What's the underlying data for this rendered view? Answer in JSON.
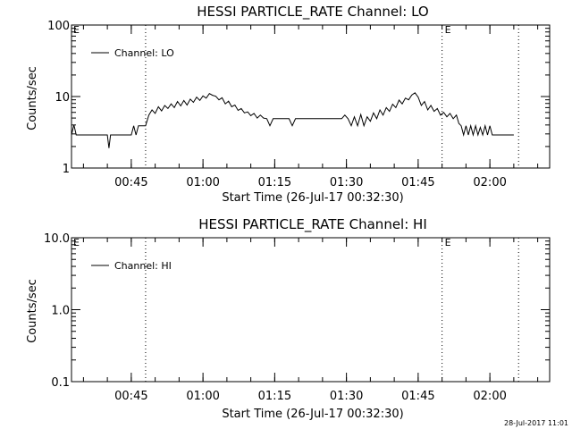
{
  "chart_data": [
    {
      "type": "line",
      "title": "HESSI PARTICLE_RATE Channel: LO",
      "xlabel": "Start Time (26-Jul-17 00:32:30)",
      "ylabel": "Counts/sec",
      "yscale": "log",
      "ylim": [
        1,
        100
      ],
      "yticks": [
        1,
        10,
        100
      ],
      "ytick_labels": [
        "1",
        "10",
        "100"
      ],
      "xlim": [
        "00:32:30",
        "02:12:30"
      ],
      "xticks": [
        "00:45",
        "01:00",
        "01:15",
        "01:30",
        "01:45",
        "02:00"
      ],
      "grid": false,
      "legend_position": "top-left",
      "event_markers": [
        {
          "time": "00:48",
          "label": ""
        },
        {
          "time": "01:50",
          "label": "E"
        },
        {
          "time": "02:06",
          "label": ""
        }
      ],
      "corner_label": "E",
      "series": [
        {
          "name": "Channel: LO",
          "x": [
            "00:32:30",
            "00:33:00",
            "00:33:30",
            "00:34:00",
            "00:35:00",
            "00:38:00",
            "00:40:00",
            "00:40:20",
            "00:40:40",
            "00:43:00",
            "00:45:00",
            "00:45:30",
            "00:46:00",
            "00:46:30",
            "00:48:00",
            "00:48:40",
            "00:49:20",
            "00:50:00",
            "00:50:40",
            "00:51:20",
            "00:52:00",
            "00:52:40",
            "00:53:20",
            "00:54:00",
            "00:54:40",
            "00:55:20",
            "00:56:00",
            "00:56:40",
            "00:57:20",
            "00:58:00",
            "00:58:40",
            "00:59:20",
            "01:00:00",
            "01:00:40",
            "01:01:20",
            "01:02:00",
            "01:02:40",
            "01:03:20",
            "01:04:00",
            "01:04:40",
            "01:05:20",
            "01:06:00",
            "01:06:40",
            "01:07:20",
            "01:08:00",
            "01:08:40",
            "01:09:20",
            "01:10:00",
            "01:10:40",
            "01:11:20",
            "01:12:00",
            "01:12:40",
            "01:13:20",
            "01:14:00",
            "01:14:40",
            "01:15:20",
            "01:16:00",
            "01:17:00",
            "01:18:00",
            "01:18:40",
            "01:19:20",
            "01:20:00",
            "01:21:00",
            "01:22:00",
            "01:24:00",
            "01:26:00",
            "01:28:00",
            "01:29:00",
            "01:29:40",
            "01:30:20",
            "01:31:00",
            "01:31:40",
            "01:32:20",
            "01:33:00",
            "01:33:40",
            "01:34:20",
            "01:35:00",
            "01:35:40",
            "01:36:20",
            "01:37:00",
            "01:37:40",
            "01:38:20",
            "01:39:00",
            "01:39:40",
            "01:40:20",
            "01:41:00",
            "01:41:40",
            "01:42:20",
            "01:43:00",
            "01:43:40",
            "01:44:20",
            "01:45:00",
            "01:45:40",
            "01:46:20",
            "01:47:00",
            "01:47:40",
            "01:48:20",
            "01:49:00",
            "01:49:40",
            "01:50:20",
            "01:51:00",
            "01:51:40",
            "01:52:20",
            "01:53:00",
            "01:53:30",
            "01:54:00",
            "01:54:30",
            "01:55:00",
            "01:55:30",
            "01:56:00",
            "01:56:30",
            "01:57:00",
            "01:57:30",
            "01:58:00",
            "01:58:30",
            "01:59:00",
            "01:59:30",
            "02:00:00",
            "02:00:30",
            "02:01:00",
            "02:02:00",
            "02:03:00",
            "02:04:00",
            "02:05:00"
          ],
          "y": [
            2.9,
            4,
            2.9,
            2.9,
            2.9,
            2.9,
            2.9,
            1.9,
            2.9,
            2.9,
            2.9,
            3.9,
            2.9,
            3.9,
            3.9,
            5.5,
            6.5,
            5.8,
            7.2,
            6.3,
            7.5,
            6.8,
            7.9,
            7,
            8.5,
            7.4,
            8.8,
            7.6,
            9.2,
            8.3,
            9.8,
            8.8,
            10.2,
            9.5,
            11,
            10.4,
            10.1,
            9,
            9.6,
            7.9,
            8.6,
            7.2,
            7.6,
            6.4,
            6.8,
            5.9,
            6.1,
            5.4,
            5.8,
            5,
            5.5,
            5,
            4.9,
            3.9,
            4.9,
            4.9,
            4.9,
            4.9,
            4.9,
            3.9,
            4.9,
            4.9,
            4.9,
            4.9,
            4.9,
            4.9,
            4.9,
            4.9,
            5.5,
            4.9,
            3.9,
            5.2,
            3.9,
            5.6,
            3.9,
            5.2,
            4.5,
            5.9,
            4.9,
            6.5,
            5.5,
            7,
            6.2,
            7.8,
            7,
            8.9,
            7.9,
            9.5,
            9,
            10.5,
            11.3,
            9.8,
            7.5,
            8.5,
            6.5,
            7.5,
            6.2,
            6.8,
            5.5,
            6,
            5.2,
            5.8,
            4.9,
            5.5,
            4.2,
            3.9,
            2.9,
            3.9,
            2.9,
            3.9,
            2.9,
            3.9,
            2.9,
            3.7,
            2.9,
            3.9,
            2.9,
            3.9,
            2.9,
            2.9,
            2.9,
            2.9,
            2.9,
            2.9
          ]
        }
      ]
    },
    {
      "type": "line",
      "title": "HESSI PARTICLE_RATE Channel: HI",
      "xlabel": "Start Time (26-Jul-17 00:32:30)",
      "ylabel": "Counts/sec",
      "yscale": "log",
      "ylim": [
        0.1,
        10
      ],
      "yticks": [
        0.1,
        1,
        10
      ],
      "ytick_labels": [
        "0.1",
        "1.0",
        "10.0"
      ],
      "xlim": [
        "00:32:30",
        "02:12:30"
      ],
      "xticks": [
        "00:45",
        "01:00",
        "01:15",
        "01:30",
        "01:45",
        "02:00"
      ],
      "grid": false,
      "legend_position": "top-left",
      "event_markers": [
        {
          "time": "00:48",
          "label": ""
        },
        {
          "time": "01:50",
          "label": "E"
        },
        {
          "time": "02:06",
          "label": ""
        }
      ],
      "corner_label": "E",
      "series": [
        {
          "name": "Channel: HI",
          "x": [],
          "y": []
        }
      ]
    }
  ],
  "footer": {
    "timestamp": "28-Jul-2017 11:01"
  }
}
